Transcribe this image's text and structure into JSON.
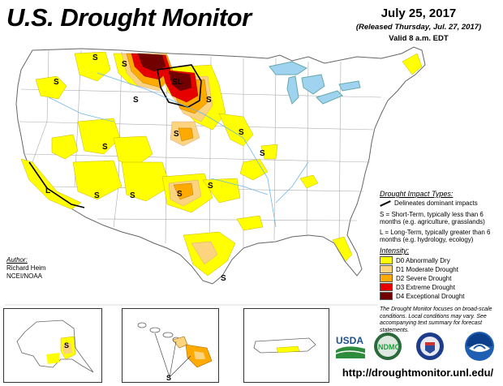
{
  "header": {
    "title": "U.S. Drought Monitor",
    "date": "July 25, 2017",
    "released": "(Released Thursday, Jul. 27, 2017)",
    "valid": "Valid 8 a.m. EDT"
  },
  "map_labels": {
    "short_term": "S",
    "long_term": "L",
    "short_long": "SL"
  },
  "legend": {
    "impact_header": "Drought Impact Types:",
    "delineates": "Delineates dominant impacts",
    "s_desc": "S = Short-Term, typically less than 6 months (e.g. agriculture, grasslands)",
    "l_desc": "L = Long-Term, typically greater than 6 months (e.g. hydrology, ecology)",
    "intensity_header": "Intensity:",
    "categories": [
      {
        "label": "D0 Abnormally Dry",
        "color": "#ffff00"
      },
      {
        "label": "D1 Moderate Drought",
        "color": "#fcd37f"
      },
      {
        "label": "D2 Severe Drought",
        "color": "#ffaa00"
      },
      {
        "label": "D3 Extreme Drought",
        "color": "#e60000"
      },
      {
        "label": "D4 Exceptional Drought",
        "color": "#730000"
      }
    ]
  },
  "author": {
    "header": "Author:",
    "name": "Richard Heim",
    "org": "NCEI/NOAA"
  },
  "note": "The Drought Monitor focuses on broad-scale conditions. Local conditions may vary. See accompanying text summary for forecast statements.",
  "logos": {
    "usda": "USDA",
    "ndmc": "NDMC"
  },
  "url": "http://droughtmonitor.unl.edu/"
}
